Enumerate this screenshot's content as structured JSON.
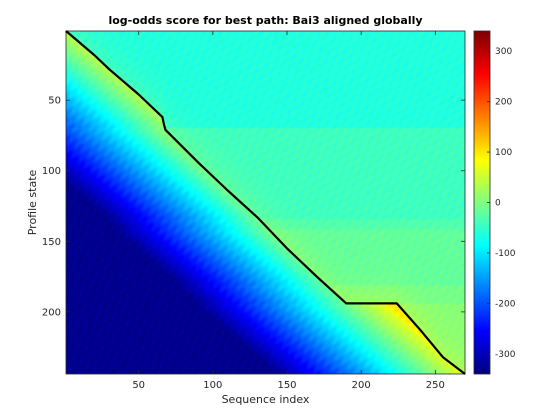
{
  "chart_data": {
    "type": "heatmap",
    "title": "log-odds score for best path: Bai3 aligned globally",
    "xlabel": "Sequence index",
    "ylabel": "Profile state",
    "xlim": [
      1,
      270
    ],
    "ylim": [
      1,
      244
    ],
    "y_reversed": true,
    "x_ticks": [
      50,
      100,
      150,
      200,
      250
    ],
    "y_ticks": [
      50,
      100,
      150,
      200
    ],
    "colormap": "jet",
    "color_range": [
      -340,
      340
    ],
    "colorbar_ticks": [
      -300,
      -200,
      -100,
      0,
      100,
      200,
      300
    ],
    "best_path": [
      [
        1,
        1
      ],
      [
        20,
        18
      ],
      [
        30,
        28
      ],
      [
        50,
        46
      ],
      [
        66,
        62
      ],
      [
        67,
        67
      ],
      [
        68,
        71
      ],
      [
        90,
        94
      ],
      [
        110,
        114
      ],
      [
        130,
        133
      ],
      [
        150,
        155
      ],
      [
        170,
        175
      ],
      [
        190,
        194
      ],
      [
        200,
        194
      ],
      [
        224,
        194
      ],
      [
        240,
        213
      ],
      [
        255,
        232
      ],
      [
        270,
        244
      ]
    ],
    "horizontal_bands": [
      70,
      135,
      142,
      182,
      195
    ]
  }
}
